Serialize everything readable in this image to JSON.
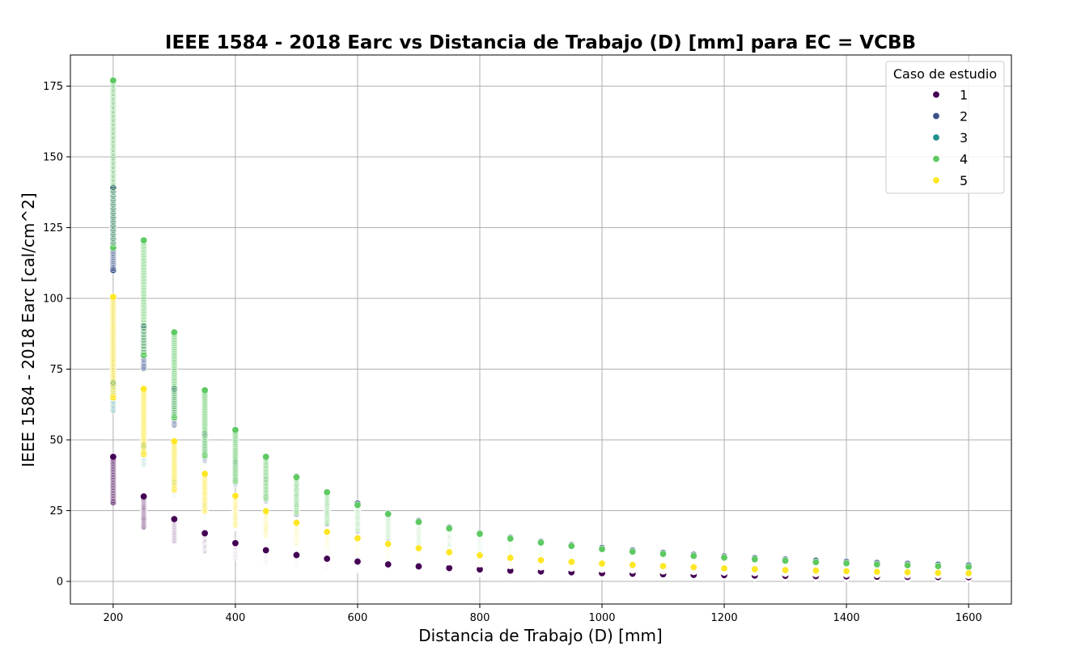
{
  "chart_data": {
    "type": "scatter",
    "title": "IEEE 1584 - 2018 Earc vs Distancia de Trabajo (D) [mm] para EC = VCBB",
    "xlabel": "Distancia de Trabajo (D) [mm]",
    "ylabel": "IEEE 1584 - 2018 Earc [cal/cm^2]",
    "xlim": [
      130,
      1670
    ],
    "ylim": [
      -8,
      186
    ],
    "xticks": [
      200,
      400,
      600,
      800,
      1000,
      1200,
      1400,
      1600
    ],
    "yticks": [
      0,
      25,
      50,
      75,
      100,
      125,
      150,
      175
    ],
    "grid": true,
    "legend": {
      "title": "Caso de estudio",
      "position": "upper right",
      "entries": [
        "1",
        "2",
        "3",
        "4",
        "5"
      ]
    },
    "x": [
      200,
      250,
      300,
      350,
      400,
      450,
      500,
      550,
      600,
      650,
      700,
      750,
      800,
      850,
      900,
      950,
      1000,
      1050,
      1100,
      1150,
      1200,
      1250,
      1300,
      1350,
      1400,
      1450,
      1500,
      1550,
      1600
    ],
    "series": [
      {
        "name": "1",
        "color": "#440154",
        "min": [
          28,
          19.5,
          14.5,
          11,
          8.5,
          7,
          6,
          5,
          4.2,
          3.7,
          3.3,
          3,
          2.7,
          2.4,
          2.2,
          2,
          1.8,
          1.7,
          1.6,
          1.5,
          1.4,
          1.3,
          1.25,
          1.2,
          1.1,
          1.05,
          1,
          0.95,
          0.9
        ],
        "max": [
          44,
          30,
          22,
          17,
          13.5,
          11,
          9.3,
          8,
          7,
          6,
          5.3,
          4.7,
          4.2,
          3.8,
          3.5,
          3.2,
          2.9,
          2.7,
          2.5,
          2.3,
          2.2,
          2.05,
          1.95,
          1.85,
          1.75,
          1.65,
          1.58,
          1.5,
          1.45
        ]
      },
      {
        "name": "2",
        "color": "#3b528b",
        "min": [
          110,
          75.5,
          55.5,
          43,
          34.5,
          28.5,
          24,
          20.5,
          18,
          15.5,
          13.8,
          12.4,
          11.1,
          10,
          9.1,
          8.4,
          7.7,
          7.2,
          6.7,
          6.2,
          5.8,
          5.5,
          5.2,
          4.9,
          4.6,
          4.4,
          4.2,
          4,
          3.8
        ],
        "max": [
          139,
          90,
          68,
          52,
          42,
          36,
          37,
          31.5,
          27.5,
          24,
          21.3,
          19,
          17,
          15.4,
          14,
          12.8,
          11.8,
          10.9,
          10.1,
          9.4,
          8.8,
          8.2,
          7.7,
          7.3,
          6.9,
          6.5,
          6.2,
          5.9,
          5.6
        ]
      },
      {
        "name": "3",
        "color": "#21918c",
        "min": [
          60.5,
          41.5,
          30.5,
          23.5,
          19,
          15.5,
          13,
          11.3,
          9.8,
          8.6,
          7.7,
          6.9,
          6.2,
          5.6,
          5.1,
          4.7,
          4.3,
          4,
          3.7,
          3.5,
          3.3,
          3.1,
          2.9,
          2.75,
          2.6,
          2.5,
          2.35,
          2.25,
          2.15
        ],
        "max": [
          70,
          48,
          35,
          27,
          22,
          18,
          16,
          14,
          12,
          10.5,
          9.5,
          8.5,
          7.6,
          6.9,
          6.3,
          5.8,
          5.3,
          4.9,
          4.6,
          4.3,
          4,
          3.8,
          3.6,
          3.4,
          3.2,
          3.05,
          2.9,
          2.8,
          2.65
        ]
      },
      {
        "name": "4",
        "color": "#5ec962",
        "min": [
          118,
          80,
          58,
          44.5,
          35.5,
          29.5,
          24.5,
          21,
          18.5,
          16,
          14.3,
          12.8,
          11.5,
          10.4,
          9.5,
          8.7,
          8,
          7.4,
          6.9,
          6.4,
          6,
          5.7,
          5.4,
          5.1,
          4.8,
          4.6,
          4.4,
          4.2,
          4
        ],
        "max": [
          177,
          120.5,
          88,
          67.5,
          53.5,
          44,
          36.8,
          31.5,
          27,
          23.8,
          21,
          18.7,
          16.8,
          15.1,
          13.7,
          12.5,
          11.4,
          10.5,
          9.7,
          9,
          8.4,
          7.8,
          7.3,
          6.8,
          6.4,
          6,
          5.7,
          5.4,
          5.1
        ]
      },
      {
        "name": "5",
        "color": "#fde725",
        "min": [
          65,
          45,
          32.5,
          25,
          20,
          16.5,
          13.8,
          11.8,
          10.2,
          9,
          8,
          7.1,
          6.4,
          5.8,
          5.3,
          4.8,
          4.4,
          4.1,
          3.8,
          3.5,
          3.3,
          3.1,
          2.9,
          2.75,
          2.6,
          2.45,
          2.3,
          2.2,
          2.1
        ],
        "max": [
          100.5,
          68,
          49.5,
          38,
          30.2,
          24.8,
          20.7,
          17.5,
          15.2,
          13.2,
          11.7,
          10.3,
          9.2,
          8.3,
          7.5,
          6.9,
          6.3,
          5.8,
          5.4,
          5,
          4.6,
          4.3,
          4,
          3.8,
          3.6,
          3.4,
          3.2,
          3,
          2.9
        ]
      }
    ]
  }
}
